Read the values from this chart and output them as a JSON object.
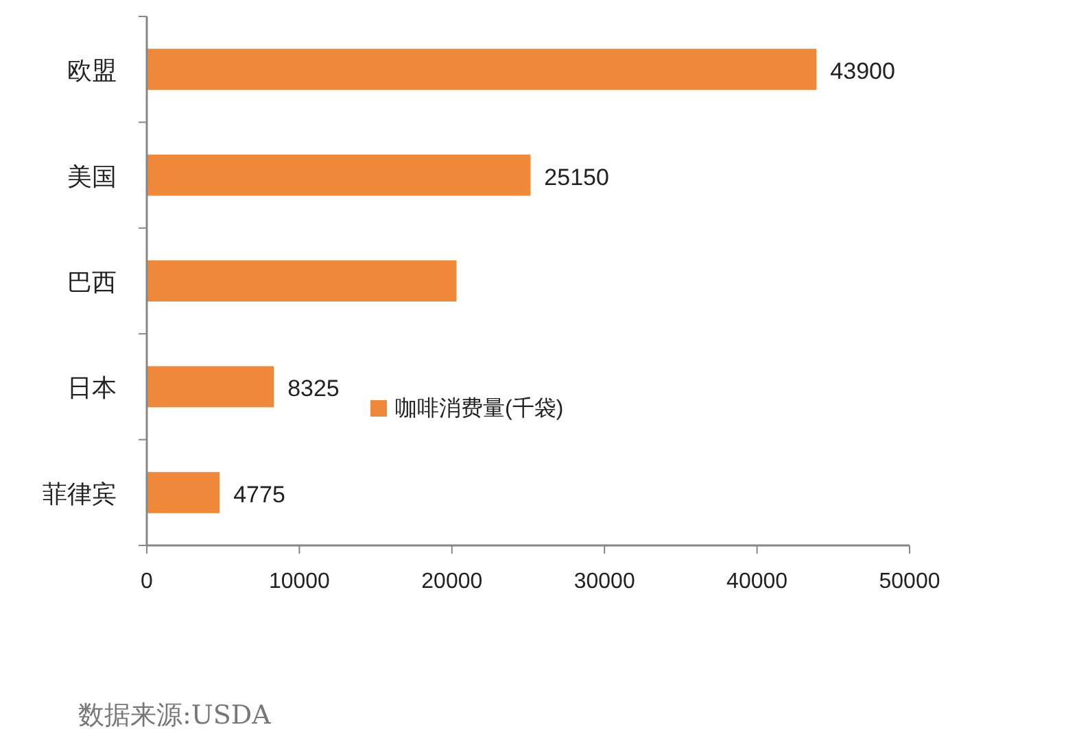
{
  "chart_data": {
    "type": "bar",
    "orientation": "horizontal",
    "categories": [
      "欧盟",
      "美国",
      "巴西",
      "日本",
      "菲律宾"
    ],
    "series": [
      {
        "name": "咖啡消费量(千袋)",
        "color": "#f0883a",
        "values": [
          43900,
          25150,
          20300,
          8325,
          4775
        ],
        "value_labels": [
          "43900",
          "25150",
          null,
          "8325",
          "4775"
        ]
      }
    ],
    "xlim": [
      0,
      50000
    ],
    "xticks": [
      0,
      10000,
      20000,
      30000,
      40000,
      50000
    ],
    "grid": false,
    "legend": "bottom",
    "annotations": [
      "数据来源:USDA"
    ]
  }
}
